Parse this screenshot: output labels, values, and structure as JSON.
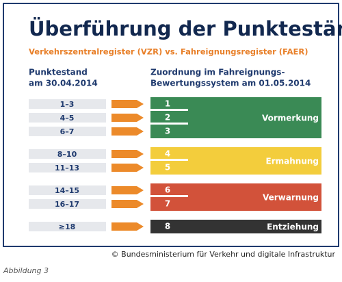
{
  "title": "Überführung der Punktestände",
  "subtitle": "Verkehrszentralregister (VZR) vs. Fahreignungsregister (FAER)",
  "left_header": [
    "Punktestand",
    "am 30.04.2014"
  ],
  "right_header": [
    "Zuordnung im Fahreignungs-",
    "Bewertungssystem am 01.05.2014"
  ],
  "groups": [
    {
      "label": "Vormerkung",
      "color": "#3a8a55",
      "rows": [
        {
          "points": "1–3",
          "level": "1"
        },
        {
          "points": "4–5",
          "level": "2"
        },
        {
          "points": "6–7",
          "level": "3"
        }
      ]
    },
    {
      "label": "Ermahnung",
      "color": "#f3cd3c",
      "rows": [
        {
          "points": "8–10",
          "level": "4"
        },
        {
          "points": "11–13",
          "level": "5"
        }
      ]
    },
    {
      "label": "Verwarnung",
      "color": "#d2523a",
      "rows": [
        {
          "points": "14–15",
          "level": "6"
        },
        {
          "points": "16–17",
          "level": "7"
        }
      ]
    },
    {
      "label": "Entziehung",
      "color": "#333333",
      "rows": [
        {
          "points": "≥18",
          "level": "8"
        }
      ]
    }
  ],
  "credit": "© Bundesministerium für Verkehr und digitale Infrastruktur",
  "caption": "Abbildung 3"
}
